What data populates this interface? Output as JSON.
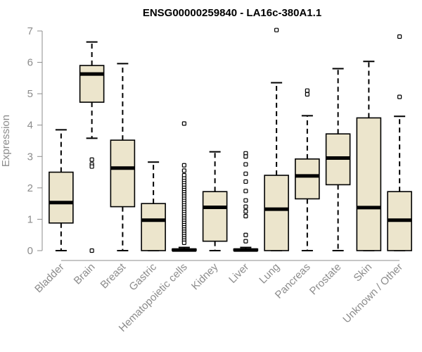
{
  "chart_data": {
    "type": "boxplot",
    "title": "ENSG00000259840 - LA16c-380A1.1",
    "xlabel": "",
    "ylabel": "Expression",
    "ylim": [
      0,
      7
    ],
    "yticks": [
      0,
      1,
      2,
      3,
      4,
      5,
      6,
      7
    ],
    "box_fill": "#ece5cc",
    "axis_color": "#8c8c8c",
    "categories": [
      "Bladder",
      "Brain",
      "Breast",
      "Gastric",
      "Hematopoietic cells",
      "Kidney",
      "Liver",
      "Lung",
      "Pancreas",
      "Prostate",
      "Skin",
      "Unknown / Other"
    ],
    "series": [
      {
        "name": "Bladder",
        "whisker_low": 0,
        "q1": 0.88,
        "median": 1.53,
        "q3": 2.5,
        "whisker_high": 3.85,
        "outliers": []
      },
      {
        "name": "Brain",
        "whisker_low": 3.58,
        "q1": 4.73,
        "median": 5.63,
        "q3": 5.9,
        "whisker_high": 6.65,
        "outliers": [
          2.9,
          2.75,
          2.68,
          0
        ]
      },
      {
        "name": "Breast",
        "whisker_low": 0,
        "q1": 1.4,
        "median": 2.63,
        "q3": 3.52,
        "whisker_high": 5.96,
        "outliers": []
      },
      {
        "name": "Gastric",
        "whisker_low": 0,
        "q1": 0,
        "median": 0.97,
        "q3": 1.5,
        "whisker_high": 2.82,
        "outliers": []
      },
      {
        "name": "Hematopoietic cells",
        "whisker_low": 0,
        "q1": 0,
        "median": 0.02,
        "q3": 0.05,
        "whisker_high": 0.1,
        "outliers": [
          4.05,
          2.72,
          2.55,
          2.4,
          2.3,
          2.22,
          2.15,
          2.08,
          2.0,
          1.93,
          1.86,
          1.79,
          1.72,
          1.65,
          1.58,
          1.51,
          1.44,
          1.37,
          1.3,
          1.23,
          1.16,
          1.09,
          1.02,
          0.95,
          0.88,
          0.81,
          0.74,
          0.67,
          0.6,
          0.53,
          0.46,
          0.39,
          0.32,
          0.25
        ]
      },
      {
        "name": "Kidney",
        "whisker_low": 0,
        "q1": 0.3,
        "median": 1.38,
        "q3": 1.88,
        "whisker_high": 3.15,
        "outliers": []
      },
      {
        "name": "Liver",
        "whisker_low": 0,
        "q1": 0,
        "median": 0.02,
        "q3": 0.05,
        "whisker_high": 0.1,
        "outliers": [
          3.1,
          3.0,
          2.75,
          2.45,
          2.2,
          1.9,
          1.6,
          1.4,
          1.25,
          1.1,
          0.5,
          0.3
        ]
      },
      {
        "name": "Lung",
        "whisker_low": 0,
        "q1": 0,
        "median": 1.32,
        "q3": 2.4,
        "whisker_high": 5.35,
        "outliers": [
          7.03
        ]
      },
      {
        "name": "Pancreas",
        "whisker_low": 0,
        "q1": 1.65,
        "median": 2.38,
        "q3": 2.92,
        "whisker_high": 4.3,
        "outliers": [
          5.1,
          4.98
        ]
      },
      {
        "name": "Prostate",
        "whisker_low": 0,
        "q1": 2.1,
        "median": 2.95,
        "q3": 3.72,
        "whisker_high": 5.8,
        "outliers": []
      },
      {
        "name": "Skin",
        "whisker_low": 0,
        "q1": 0,
        "median": 1.37,
        "q3": 4.23,
        "whisker_high": 6.03,
        "outliers": []
      },
      {
        "name": "Unknown / Other",
        "whisker_low": 0,
        "q1": 0,
        "median": 0.97,
        "q3": 1.88,
        "whisker_high": 4.28,
        "outliers": [
          6.82,
          4.9
        ]
      }
    ]
  }
}
